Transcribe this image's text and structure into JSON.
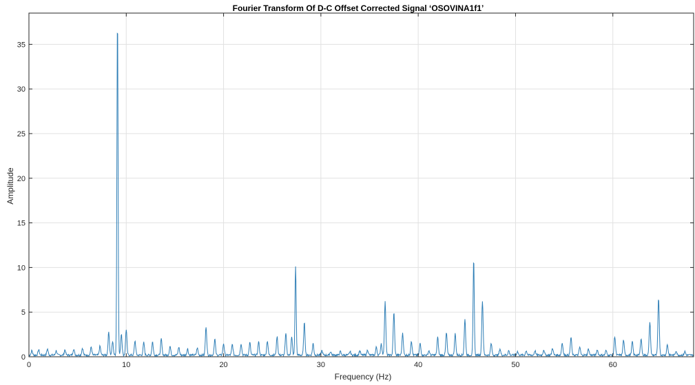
{
  "chart_data": {
    "type": "line",
    "title": "Fourier Transform Of D-C Offset Corrected Signal ‘OSOVINA1f1’",
    "xlabel": "Frequency (Hz)",
    "ylabel": "Amplitude",
    "xlim": [
      0,
      68.3
    ],
    "ylim": [
      0,
      38.5
    ],
    "xticks": [
      0,
      10,
      20,
      30,
      40,
      50,
      60
    ],
    "yticks": [
      0,
      5,
      10,
      15,
      20,
      25,
      30,
      35
    ],
    "grid": true,
    "legend": "none",
    "colors": {
      "line": "#2e7eb6",
      "grid": "#e1e1e1",
      "axis": "#262626"
    },
    "baseline_noise": 0.3,
    "peaks": [
      {
        "f": 0.3,
        "a": 0.5
      },
      {
        "f": 1.0,
        "a": 0.6
      },
      {
        "f": 1.9,
        "a": 0.7
      },
      {
        "f": 2.8,
        "a": 0.5
      },
      {
        "f": 3.7,
        "a": 0.6
      },
      {
        "f": 4.6,
        "a": 0.7
      },
      {
        "f": 5.5,
        "a": 0.8
      },
      {
        "f": 6.4,
        "a": 0.9
      },
      {
        "f": 7.3,
        "a": 1.0
      },
      {
        "f": 8.2,
        "a": 2.6
      },
      {
        "f": 8.6,
        "a": 1.5
      },
      {
        "f": 9.1,
        "a": 38.1
      },
      {
        "f": 9.5,
        "a": 2.4
      },
      {
        "f": 10.0,
        "a": 2.9
      },
      {
        "f": 10.9,
        "a": 1.6
      },
      {
        "f": 11.8,
        "a": 1.4
      },
      {
        "f": 12.7,
        "a": 1.5
      },
      {
        "f": 13.6,
        "a": 1.8
      },
      {
        "f": 14.5,
        "a": 1.0
      },
      {
        "f": 15.4,
        "a": 0.9
      },
      {
        "f": 16.3,
        "a": 0.7
      },
      {
        "f": 17.3,
        "a": 0.8
      },
      {
        "f": 18.2,
        "a": 3.2
      },
      {
        "f": 19.1,
        "a": 1.8
      },
      {
        "f": 20.0,
        "a": 1.3
      },
      {
        "f": 20.9,
        "a": 1.2
      },
      {
        "f": 21.8,
        "a": 1.3
      },
      {
        "f": 22.7,
        "a": 1.4
      },
      {
        "f": 23.6,
        "a": 1.5
      },
      {
        "f": 24.5,
        "a": 1.6
      },
      {
        "f": 25.5,
        "a": 2.1
      },
      {
        "f": 26.4,
        "a": 2.4
      },
      {
        "f": 27.0,
        "a": 2.0
      },
      {
        "f": 27.4,
        "a": 10.0
      },
      {
        "f": 28.3,
        "a": 3.6
      },
      {
        "f": 29.2,
        "a": 1.3
      },
      {
        "f": 30.1,
        "a": 0.5
      },
      {
        "f": 31.0,
        "a": 0.4
      },
      {
        "f": 32.0,
        "a": 0.4
      },
      {
        "f": 33.0,
        "a": 0.4
      },
      {
        "f": 34.0,
        "a": 0.5
      },
      {
        "f": 34.8,
        "a": 0.6
      },
      {
        "f": 35.7,
        "a": 0.9
      },
      {
        "f": 36.2,
        "a": 1.3
      },
      {
        "f": 36.6,
        "a": 6.0
      },
      {
        "f": 37.5,
        "a": 4.8
      },
      {
        "f": 38.4,
        "a": 2.5
      },
      {
        "f": 39.3,
        "a": 1.6
      },
      {
        "f": 40.2,
        "a": 1.3
      },
      {
        "f": 41.1,
        "a": 0.5
      },
      {
        "f": 42.0,
        "a": 2.0
      },
      {
        "f": 42.9,
        "a": 2.5
      },
      {
        "f": 43.8,
        "a": 2.4
      },
      {
        "f": 44.8,
        "a": 4.0
      },
      {
        "f": 45.7,
        "a": 10.8
      },
      {
        "f": 46.6,
        "a": 6.1
      },
      {
        "f": 47.5,
        "a": 1.3
      },
      {
        "f": 48.4,
        "a": 0.7
      },
      {
        "f": 49.3,
        "a": 0.5
      },
      {
        "f": 50.2,
        "a": 0.4
      },
      {
        "f": 51.1,
        "a": 0.5
      },
      {
        "f": 52.0,
        "a": 0.5
      },
      {
        "f": 52.9,
        "a": 0.6
      },
      {
        "f": 53.8,
        "a": 0.8
      },
      {
        "f": 54.8,
        "a": 1.4
      },
      {
        "f": 55.7,
        "a": 2.0
      },
      {
        "f": 56.6,
        "a": 0.9
      },
      {
        "f": 57.5,
        "a": 0.7
      },
      {
        "f": 58.4,
        "a": 0.6
      },
      {
        "f": 59.3,
        "a": 0.5
      },
      {
        "f": 60.2,
        "a": 2.1
      },
      {
        "f": 61.1,
        "a": 1.7
      },
      {
        "f": 62.0,
        "a": 1.5
      },
      {
        "f": 62.9,
        "a": 1.9
      },
      {
        "f": 63.8,
        "a": 3.7
      },
      {
        "f": 64.7,
        "a": 6.4
      },
      {
        "f": 65.6,
        "a": 1.2
      },
      {
        "f": 66.5,
        "a": 0.5
      },
      {
        "f": 67.4,
        "a": 0.4
      }
    ]
  }
}
